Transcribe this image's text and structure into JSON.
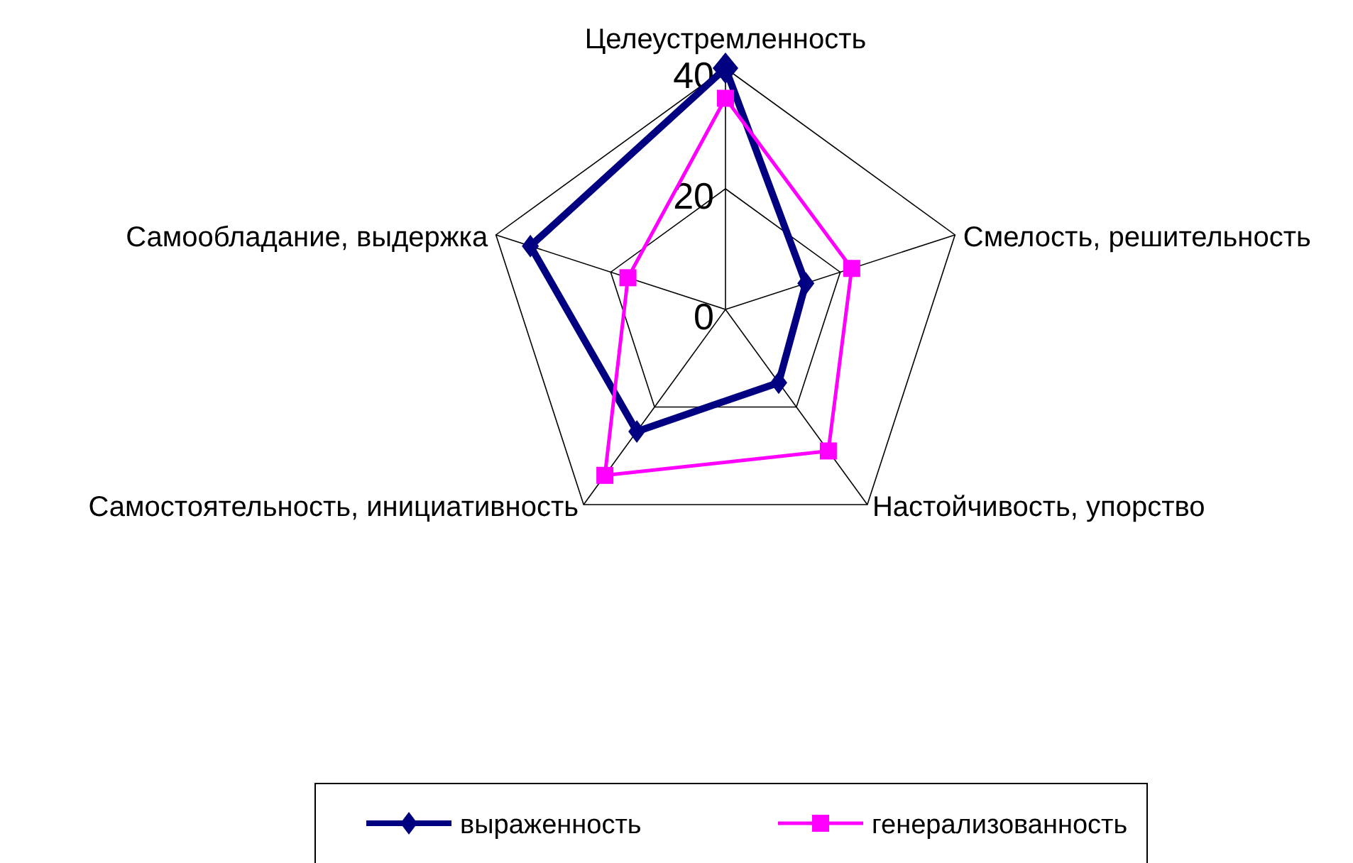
{
  "chart_data": {
    "type": "radar",
    "categories": [
      "Целеустремленность",
      "Смелость, решительность",
      "Настойчивость, упорство",
      "Самостоятельность, инициативность",
      "Самообладание, выдержка"
    ],
    "series": [
      {
        "name": "выраженность",
        "color": "#000080",
        "marker": "diamond",
        "values": [
          40,
          14,
          15,
          25,
          34
        ]
      },
      {
        "name": "генерализованность",
        "color": "#ff00ff",
        "marker": "square",
        "values": [
          35,
          22,
          29,
          34,
          17
        ]
      }
    ],
    "ylim": [
      0,
      40
    ],
    "yticks": [
      0,
      20,
      40
    ],
    "legend": "bottom",
    "grid": true
  }
}
